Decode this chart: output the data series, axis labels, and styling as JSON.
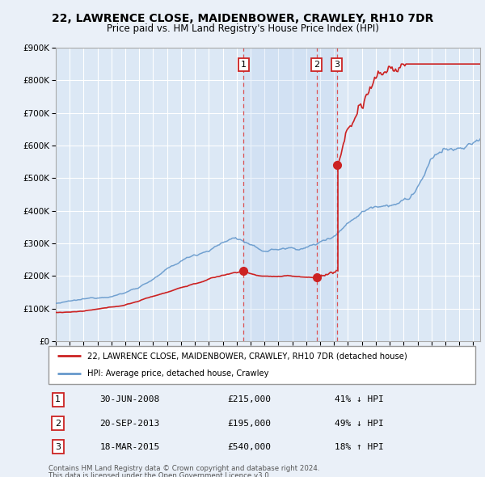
{
  "title": "22, LAWRENCE CLOSE, MAIDENBOWER, CRAWLEY, RH10 7DR",
  "subtitle": "Price paid vs. HM Land Registry's House Price Index (HPI)",
  "legend_line1": "22, LAWRENCE CLOSE, MAIDENBOWER, CRAWLEY, RH10 7DR (detached house)",
  "legend_line2": "HPI: Average price, detached house, Crawley",
  "footnote1": "Contains HM Land Registry data © Crown copyright and database right 2024.",
  "footnote2": "This data is licensed under the Open Government Licence v3.0.",
  "transactions": [
    {
      "num": "1",
      "date": "30-JUN-2008",
      "price": 215000,
      "pct": "41%",
      "dir": "↓",
      "x_year": 2008.5
    },
    {
      "num": "2",
      "date": "20-SEP-2013",
      "price": 195000,
      "pct": "49%",
      "dir": "↓",
      "x_year": 2013.75
    },
    {
      "num": "3",
      "date": "18-MAR-2015",
      "price": 540000,
      "pct": "18%",
      "dir": "↑",
      "x_year": 2015.21
    }
  ],
  "ylim": [
    0,
    900000
  ],
  "yticks": [
    0,
    100000,
    200000,
    300000,
    400000,
    500000,
    600000,
    700000,
    800000,
    900000
  ],
  "xlim_start": 1995.0,
  "xlim_end": 2025.5,
  "xticks": [
    1995,
    1996,
    1997,
    1998,
    1999,
    2000,
    2001,
    2002,
    2003,
    2004,
    2005,
    2006,
    2007,
    2008,
    2009,
    2010,
    2011,
    2012,
    2013,
    2014,
    2015,
    2016,
    2017,
    2018,
    2019,
    2020,
    2021,
    2022,
    2023,
    2024,
    2025
  ],
  "bg_color": "#eaf0f8",
  "plot_bg": "#dce8f5",
  "grid_color": "#ffffff",
  "hpi_color": "#6699cc",
  "price_color": "#cc2222",
  "dashed_color": "#cc2222",
  "highlight_start": 2008.5,
  "highlight_end": 2015.21,
  "marker_color": "#cc2222"
}
